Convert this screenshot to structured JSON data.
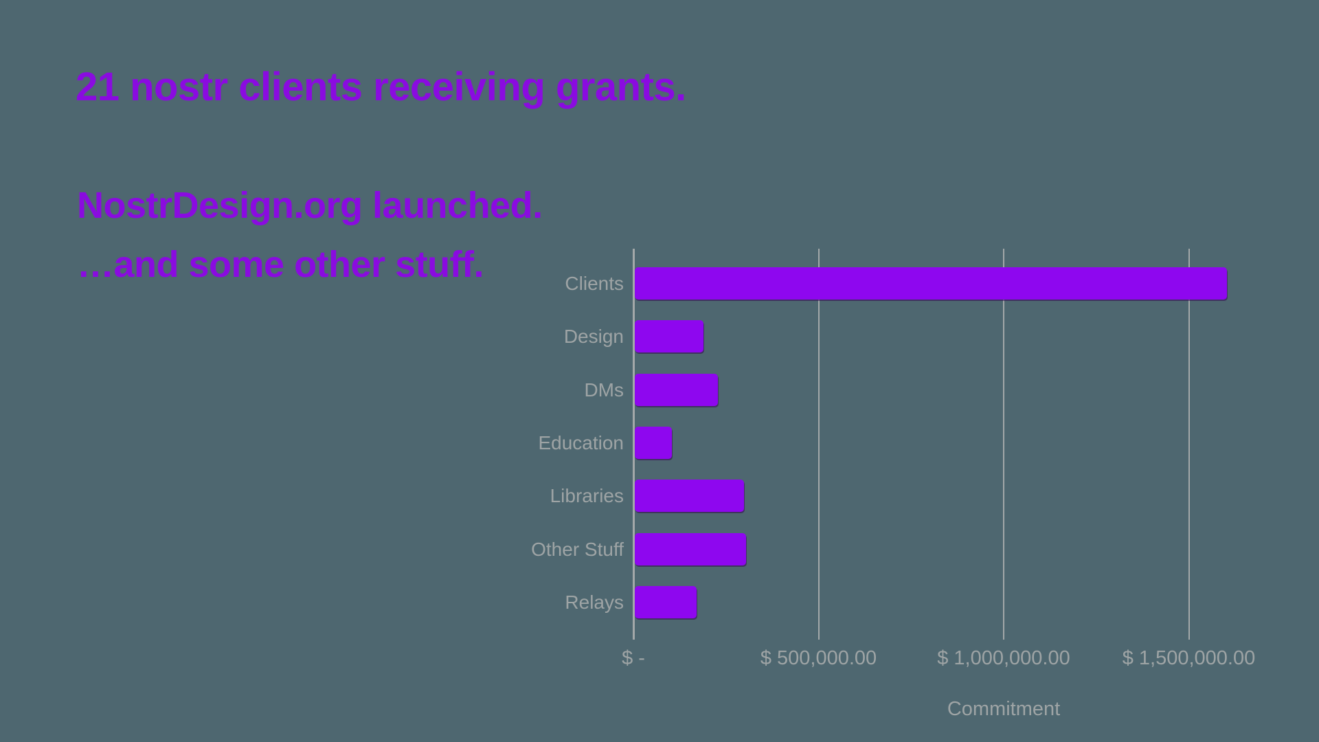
{
  "slide": {
    "background_color": "#4E6770",
    "accent_color": "#8A0BE0",
    "headings": [
      {
        "text": "21 nostr clients receiving grants."
      },
      {
        "text": "NostrDesign.org launched."
      },
      {
        "text": "…and some other stuff."
      }
    ]
  },
  "chart_data": {
    "type": "bar",
    "orientation": "horizontal",
    "title": "",
    "categories": [
      "Clients",
      "Design",
      "DMs",
      "Education",
      "Libraries",
      "Other Stuff",
      "Relays"
    ],
    "values": [
      1600000,
      185000,
      225000,
      100000,
      295000,
      300000,
      167500
    ],
    "xlabel": "Commitment",
    "ylabel": "",
    "x_ticks": [
      {
        "label": "$ -",
        "value": 0
      },
      {
        "label": "$ 500,000.00",
        "value": 500000
      },
      {
        "label": "$ 1,000,000.00",
        "value": 1000000
      },
      {
        "label": "$ 1,500,000.00",
        "value": 1500000
      }
    ],
    "xlim": [
      0,
      1630000
    ],
    "grid": true,
    "legend": false,
    "bar_color": "#8E07EF",
    "label_color": "#9EA4A5",
    "gridline_color": "#A3A8A9"
  }
}
